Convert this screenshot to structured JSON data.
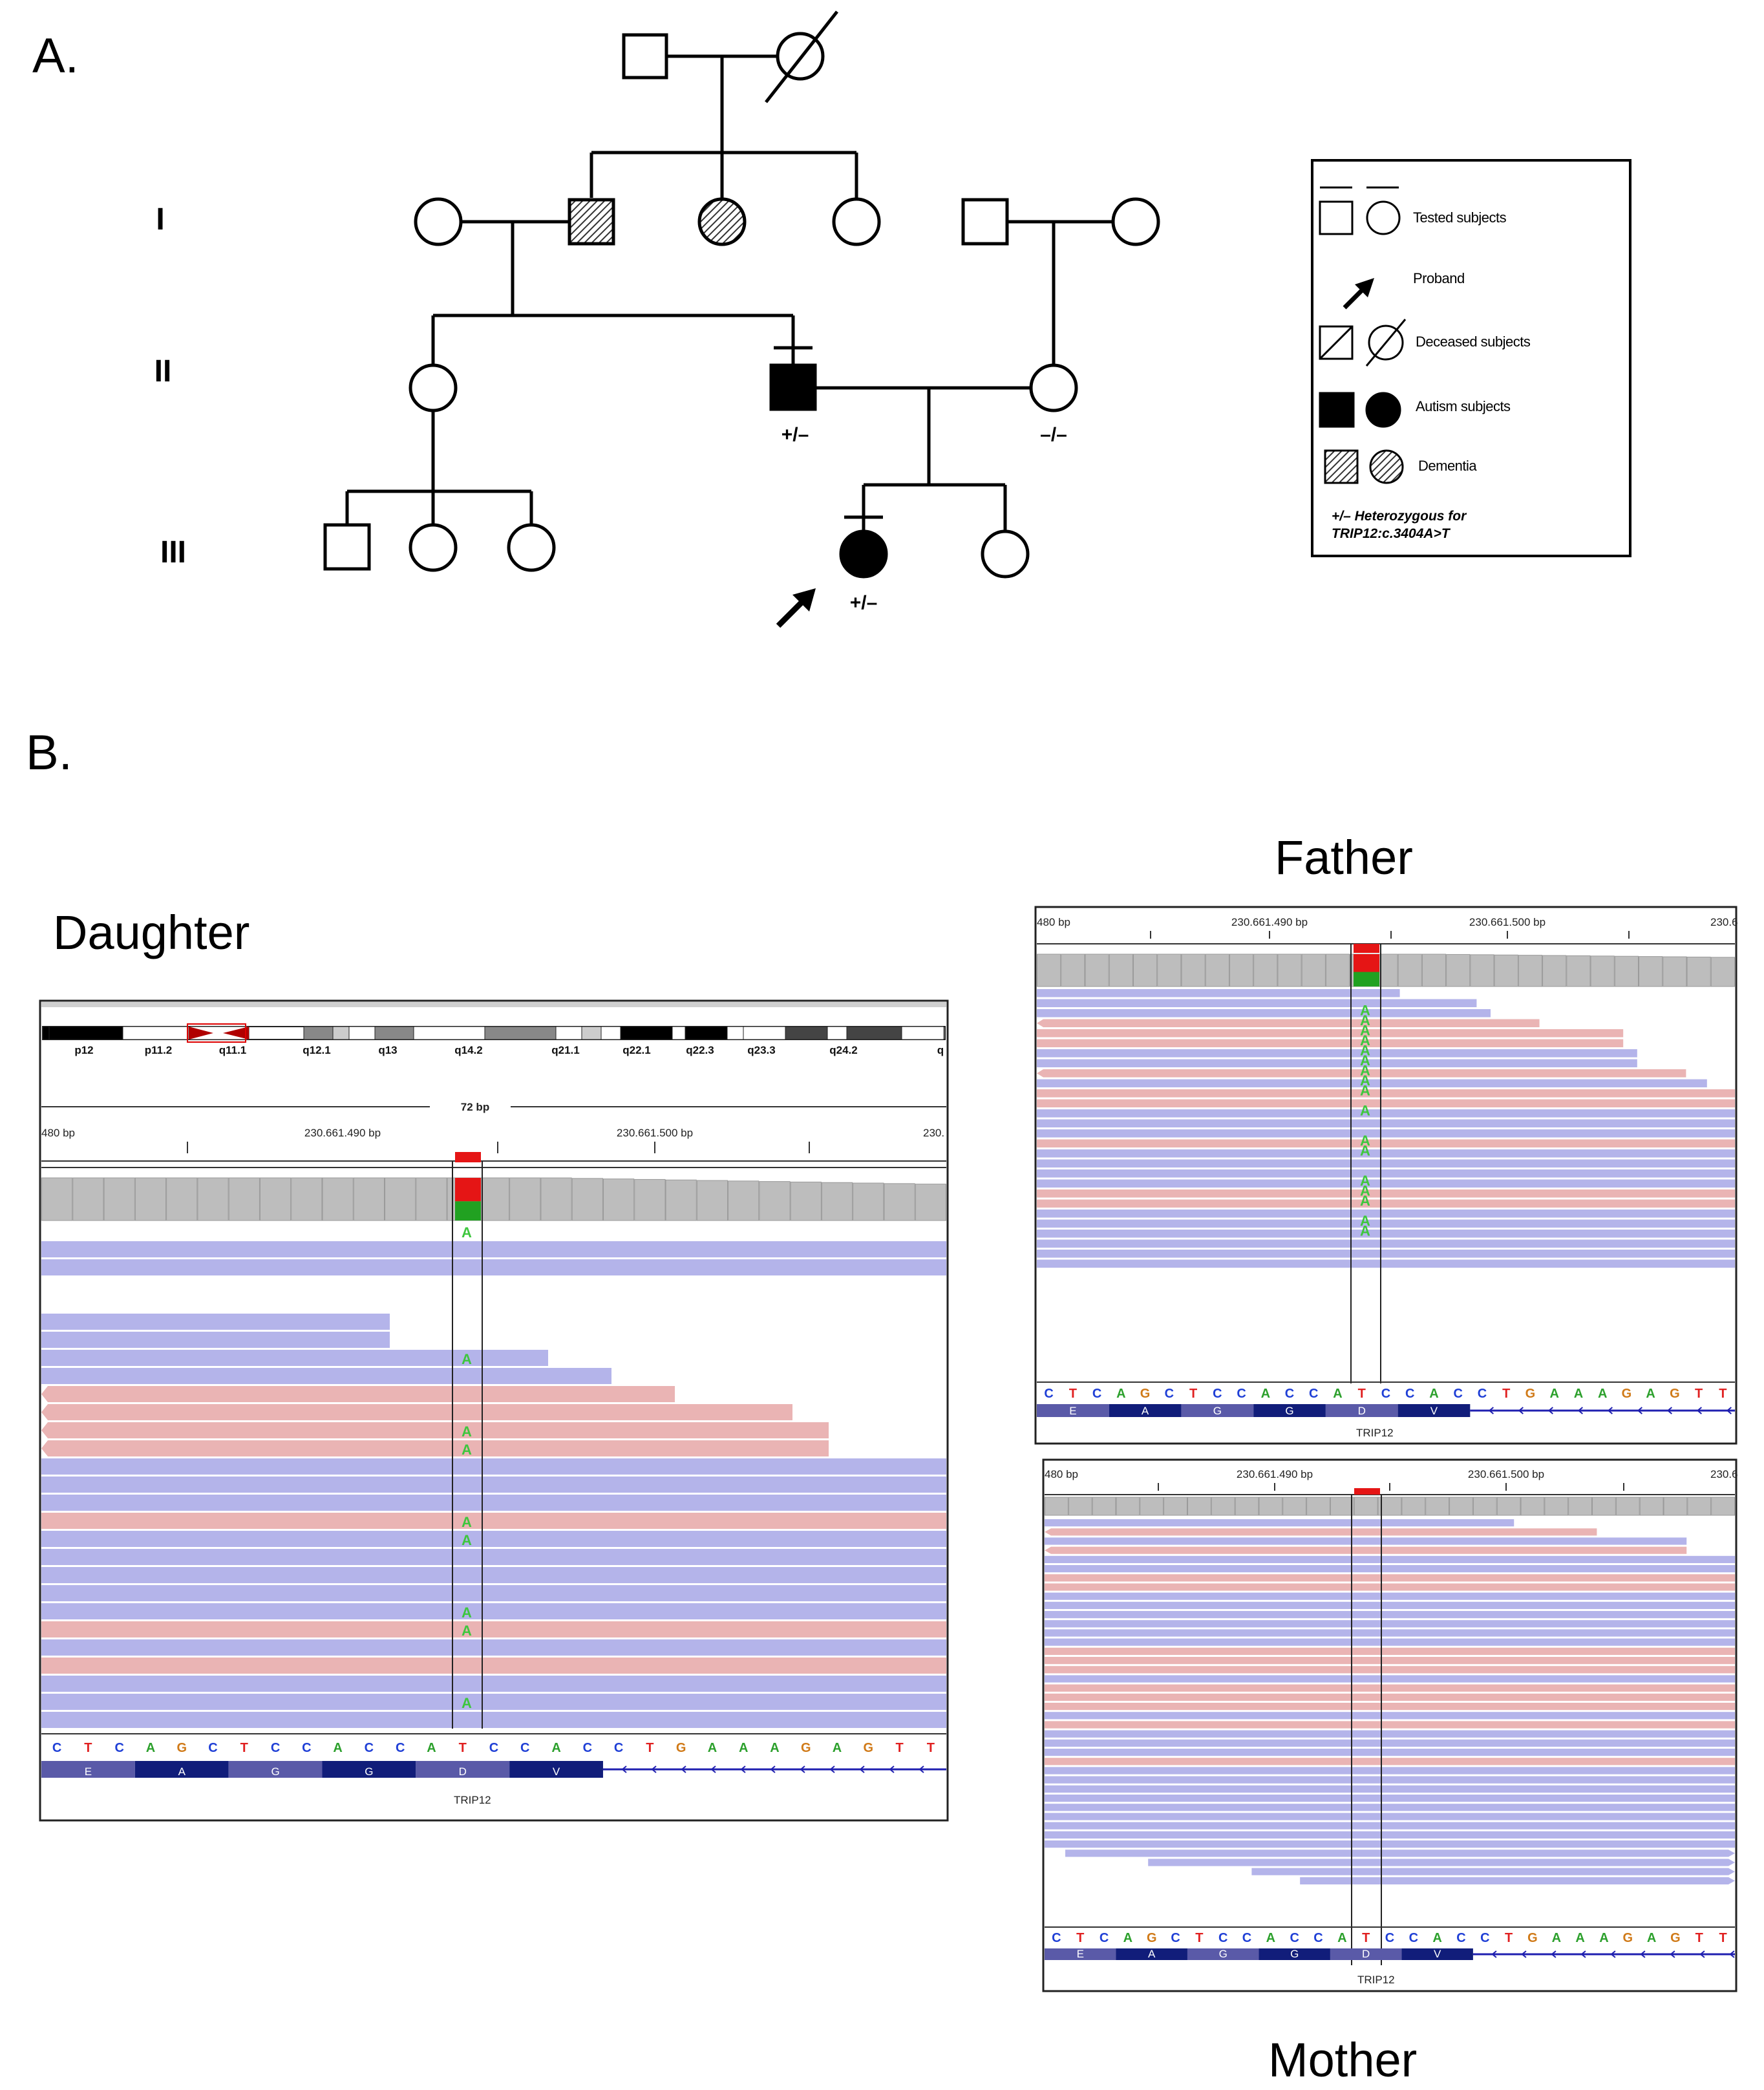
{
  "panels": {
    "a": "A.",
    "b": "B."
  },
  "pedigree": {
    "generations": [
      "I",
      "II",
      "III"
    ],
    "father_genotype": "+/–",
    "mother_genotype": "–/–",
    "proband_genotype": "+/–"
  },
  "legend": {
    "tested": "Tested subjects",
    "proband": "Proband",
    "deceased": "Deceased subjects",
    "autism": "Autism subjects",
    "dementia": "Dementia",
    "note_line1": "+/– Heterozygous for",
    "note_line2": "TRIP12:c.3404A>T"
  },
  "igv": {
    "daughter": {
      "title": "Daughter",
      "cytobands": [
        "p12",
        "p11.2",
        "q11.1",
        "q12.1",
        "q13",
        "q14.2",
        "q21.1",
        "q22.1",
        "q22.3",
        "q23.3",
        "q24.2",
        "q"
      ],
      "span": "72 bp",
      "ruler": [
        "480 bp",
        "230.661.490 bp",
        "230.661.500 bp",
        "230."
      ],
      "gene": "TRIP12"
    },
    "father": {
      "title": "Father",
      "ruler": [
        "480 bp",
        "230.661.490 bp",
        "230.661.500 bp",
        "230.6"
      ],
      "gene": "TRIP12"
    },
    "mother": {
      "title": "Mother",
      "ruler": [
        "480 bp",
        "230.661.490 bp",
        "230.661.500 bp",
        "230.6"
      ],
      "gene": "TRIP12"
    },
    "sequence": [
      "C",
      "T",
      "C",
      "A",
      "G",
      "C",
      "T",
      "C",
      "C",
      "A",
      "C",
      "C",
      "A",
      "T",
      "C",
      "C",
      "A",
      "C",
      "C",
      "T",
      "G",
      "A",
      "A",
      "A",
      "G",
      "A",
      "G",
      "T",
      "T"
    ],
    "amino_acids": [
      "E",
      "A",
      "G",
      "G",
      "D",
      "V"
    ],
    "alt_base": "A",
    "colors": {
      "A": "#2ca02c",
      "C": "#1f3fd6",
      "G": "#d07a18",
      "T": "#e02020",
      "forward": "#b4b4ea",
      "reverse": "#eab4b4",
      "coverage": "#bdbdbd"
    }
  }
}
